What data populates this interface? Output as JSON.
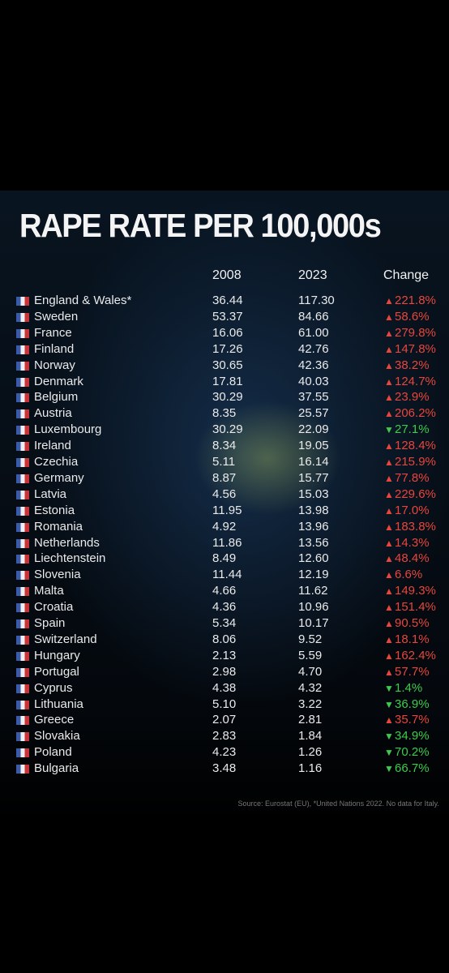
{
  "title": "RAPE RATE PER 100,000s",
  "table": {
    "header": [
      "",
      "2008",
      "2023",
      "Change"
    ],
    "rows": [
      {
        "country": "England & Wales*",
        "v2008": "36.44",
        "v2023": "117.30",
        "change": "221.8%",
        "direction": "up"
      },
      {
        "country": "Sweden",
        "v2008": "53.37",
        "v2023": "84.66",
        "change": "58.6%",
        "direction": "up"
      },
      {
        "country": "France",
        "v2008": "16.06",
        "v2023": "61.00",
        "change": "279.8%",
        "direction": "up"
      },
      {
        "country": "Finland",
        "v2008": "17.26",
        "v2023": "42.76",
        "change": "147.8%",
        "direction": "up"
      },
      {
        "country": "Norway",
        "v2008": "30.65",
        "v2023": "42.36",
        "change": "38.2%",
        "direction": "up"
      },
      {
        "country": "Denmark",
        "v2008": "17.81",
        "v2023": "40.03",
        "change": "124.7%",
        "direction": "up"
      },
      {
        "country": "Belgium",
        "v2008": "30.29",
        "v2023": "37.55",
        "change": "23.9%",
        "direction": "up"
      },
      {
        "country": "Austria",
        "v2008": "8.35",
        "v2023": "25.57",
        "change": "206.2%",
        "direction": "up"
      },
      {
        "country": "Luxembourg",
        "v2008": "30.29",
        "v2023": "22.09",
        "change": "27.1%",
        "direction": "down"
      },
      {
        "country": "Ireland",
        "v2008": "8.34",
        "v2023": "19.05",
        "change": "128.4%",
        "direction": "up"
      },
      {
        "country": "Czechia",
        "v2008": "5.11",
        "v2023": "16.14",
        "change": "215.9%",
        "direction": "up"
      },
      {
        "country": "Germany",
        "v2008": "8.87",
        "v2023": "15.77",
        "change": "77.8%",
        "direction": "up"
      },
      {
        "country": "Latvia",
        "v2008": "4.56",
        "v2023": "15.03",
        "change": "229.6%",
        "direction": "up"
      },
      {
        "country": "Estonia",
        "v2008": "11.95",
        "v2023": "13.98",
        "change": "17.0%",
        "direction": "up"
      },
      {
        "country": "Romania",
        "v2008": "4.92",
        "v2023": "13.96",
        "change": "183.8%",
        "direction": "up"
      },
      {
        "country": "Netherlands",
        "v2008": "11.86",
        "v2023": "13.56",
        "change": "14.3%",
        "direction": "up"
      },
      {
        "country": "Liechtenstein",
        "v2008": "8.49",
        "v2023": "12.60",
        "change": "48.4%",
        "direction": "up"
      },
      {
        "country": "Slovenia",
        "v2008": "11.44",
        "v2023": "12.19",
        "change": "6.6%",
        "direction": "up"
      },
      {
        "country": "Malta",
        "v2008": "4.66",
        "v2023": "11.62",
        "change": "149.3%",
        "direction": "up"
      },
      {
        "country": "Croatia",
        "v2008": "4.36",
        "v2023": "10.96",
        "change": "151.4%",
        "direction": "up"
      },
      {
        "country": "Spain",
        "v2008": "5.34",
        "v2023": "10.17",
        "change": "90.5%",
        "direction": "up"
      },
      {
        "country": "Switzerland",
        "v2008": "8.06",
        "v2023": "9.52",
        "change": "18.1%",
        "direction": "up"
      },
      {
        "country": "Hungary",
        "v2008": "2.13",
        "v2023": "5.59",
        "change": "162.4%",
        "direction": "up"
      },
      {
        "country": "Portugal",
        "v2008": "2.98",
        "v2023": "4.70",
        "change": "57.7%",
        "direction": "up"
      },
      {
        "country": "Cyprus",
        "v2008": "4.38",
        "v2023": "4.32",
        "change": "1.4%",
        "direction": "down"
      },
      {
        "country": "Lithuania",
        "v2008": "5.10",
        "v2023": "3.22",
        "change": "36.9%",
        "direction": "down"
      },
      {
        "country": "Greece",
        "v2008": "2.07",
        "v2023": "2.81",
        "change": "35.7%",
        "direction": "up"
      },
      {
        "country": "Slovakia",
        "v2008": "2.83",
        "v2023": "1.84",
        "change": "34.9%",
        "direction": "down"
      },
      {
        "country": "Poland",
        "v2008": "4.23",
        "v2023": "1.26",
        "change": "70.2%",
        "direction": "down"
      },
      {
        "country": "Bulgaria",
        "v2008": "3.48",
        "v2023": "1.16",
        "change": "66.7%",
        "direction": "down"
      }
    ]
  },
  "source": "Source: Eurostat (EU), *United Nations 2022. No data for Italy."
}
